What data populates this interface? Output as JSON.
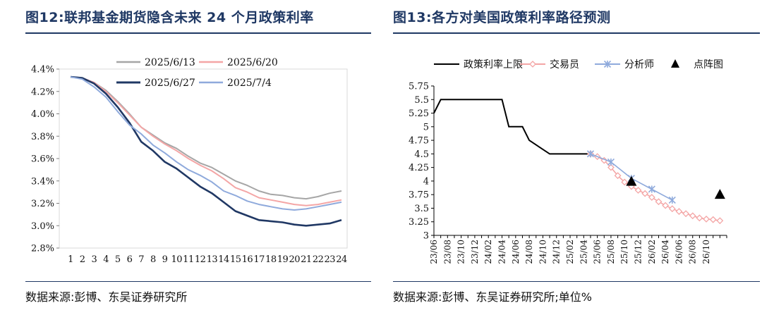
{
  "left": {
    "title": "图12:联邦基金期货隐含未来 24 个月政策利率",
    "source": "数据来源:彭博、东吴证券研究所"
  },
  "right": {
    "title": "图13:各方对美国政策利率路径预测",
    "source": "数据来源:彭博、东吴证券研究所;单位%"
  },
  "chart_data": [
    {
      "type": "line",
      "ylim": [
        2.8,
        4.4
      ],
      "yticks": [
        "2.8%",
        "3.0%",
        "3.2%",
        "3.4%",
        "3.6%",
        "3.8%",
        "4.0%",
        "4.2%",
        "4.4%"
      ],
      "ytick_values": [
        2.8,
        3.0,
        3.2,
        3.4,
        3.6,
        3.8,
        4.0,
        4.2,
        4.4
      ],
      "categories": [
        "1",
        "2",
        "3",
        "4",
        "5",
        "6",
        "7",
        "8",
        "9",
        "10",
        "11",
        "12",
        "13",
        "14",
        "15",
        "16",
        "17",
        "18",
        "19",
        "20",
        "21",
        "22",
        "23",
        "24"
      ],
      "legend_position": "top",
      "series": [
        {
          "name": "2025/6/13",
          "color": "#a6a6a6",
          "width": 2,
          "values": [
            4.33,
            4.32,
            4.28,
            4.21,
            4.11,
            4.0,
            3.88,
            3.81,
            3.74,
            3.69,
            3.62,
            3.56,
            3.52,
            3.46,
            3.4,
            3.36,
            3.31,
            3.28,
            3.27,
            3.25,
            3.24,
            3.26,
            3.29,
            3.31
          ]
        },
        {
          "name": "2025/6/20",
          "color": "#f4a6a6",
          "width": 2,
          "values": [
            4.33,
            4.32,
            4.28,
            4.2,
            4.1,
            3.99,
            3.88,
            3.8,
            3.73,
            3.67,
            3.6,
            3.54,
            3.49,
            3.42,
            3.34,
            3.3,
            3.25,
            3.23,
            3.21,
            3.19,
            3.18,
            3.19,
            3.21,
            3.23
          ]
        },
        {
          "name": "2025/6/27",
          "color": "#203864",
          "width": 2.6,
          "values": [
            4.33,
            4.32,
            4.27,
            4.18,
            4.06,
            3.92,
            3.75,
            3.67,
            3.57,
            3.51,
            3.43,
            3.35,
            3.29,
            3.21,
            3.13,
            3.09,
            3.05,
            3.04,
            3.03,
            3.01,
            3.0,
            3.01,
            3.02,
            3.05
          ]
        },
        {
          "name": "2025/7/4",
          "color": "#8faadc",
          "width": 2,
          "values": [
            4.33,
            4.31,
            4.24,
            4.15,
            4.02,
            3.9,
            3.82,
            3.72,
            3.65,
            3.57,
            3.5,
            3.45,
            3.39,
            3.31,
            3.27,
            3.22,
            3.19,
            3.17,
            3.15,
            3.14,
            3.15,
            3.17,
            3.19,
            3.21
          ]
        }
      ]
    },
    {
      "type": "line",
      "ylim": [
        3,
        5.75
      ],
      "yticks": [
        "3",
        "3.25",
        "3.5",
        "3.75",
        "4",
        "4.25",
        "4.5",
        "4.75",
        "5",
        "5.25",
        "5.5",
        "5.75"
      ],
      "ytick_values": [
        3,
        3.25,
        3.5,
        3.75,
        4,
        4.25,
        4.5,
        4.75,
        5,
        5.25,
        5.5,
        5.75
      ],
      "x_start": "2023-06",
      "x_months": 43,
      "xticks": [
        "23/06",
        "23/08",
        "23/10",
        "23/12",
        "24/02",
        "24/04",
        "24/06",
        "24/08",
        "24/10",
        "24/12",
        "25/02",
        "25/04",
        "25/06",
        "25/08",
        "25/10",
        "25/12",
        "26/02",
        "26/04",
        "26/06",
        "26/08",
        "26/10"
      ],
      "legend_position": "top",
      "series": [
        {
          "name": "政策利率上限",
          "color": "#000000",
          "marker": "none",
          "x": [
            0,
            1,
            3,
            10,
            11,
            13,
            14,
            17,
            23
          ],
          "y": [
            5.25,
            5.5,
            5.5,
            5.5,
            5,
            5,
            4.75,
            4.5,
            4.5
          ]
        },
        {
          "name": "交易员",
          "color": "#f4a6a6",
          "marker": "diamond",
          "x": [
            23,
            24,
            25,
            26,
            27,
            28,
            29,
            30,
            31,
            32,
            33,
            34,
            35,
            36,
            37,
            38,
            39,
            40,
            41,
            42
          ],
          "y": [
            4.5,
            4.45,
            4.38,
            4.25,
            4.1,
            3.98,
            3.9,
            3.83,
            3.77,
            3.7,
            3.62,
            3.55,
            3.49,
            3.44,
            3.4,
            3.36,
            3.32,
            3.3,
            3.29,
            3.27
          ]
        },
        {
          "name": "分析师",
          "color": "#8faadc",
          "marker": "star",
          "x": [
            23,
            26,
            29,
            32,
            35
          ],
          "y": [
            4.5,
            4.35,
            4.05,
            3.85,
            3.65
          ]
        },
        {
          "name": "点阵图",
          "color": "#000000",
          "marker": "triangle",
          "x": [
            29,
            42
          ],
          "y": [
            3.99,
            3.75
          ]
        }
      ]
    }
  ]
}
